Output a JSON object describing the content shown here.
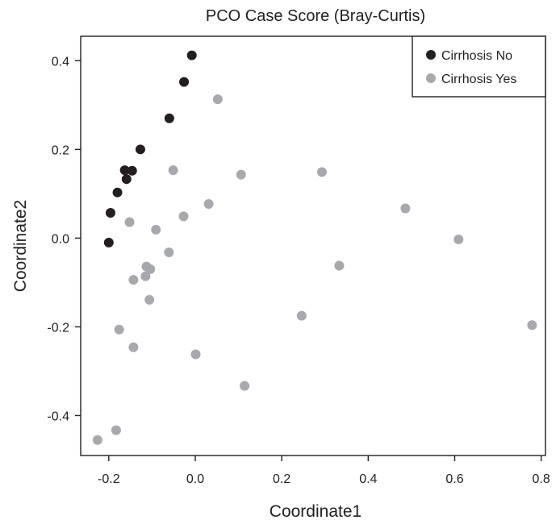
{
  "chart_data": {
    "type": "scatter",
    "title": "PCO Case Score (Bray-Curtis)",
    "xlabel": "Coordinate1",
    "ylabel": "Coordinate2",
    "xlim": [
      -0.265,
      0.81
    ],
    "ylim": [
      -0.49,
      0.455
    ],
    "xticks": [
      -0.2,
      0.0,
      0.2,
      0.4,
      0.6,
      0.8
    ],
    "xtick_labels": [
      "-0.2",
      "0.0",
      "0.2",
      "0.4",
      "0.6",
      "0.8"
    ],
    "yticks": [
      -0.4,
      -0.2,
      0.0,
      0.2,
      0.4
    ],
    "ytick_labels": [
      "-0.4",
      "-0.2",
      "0.0",
      "0.2",
      "0.4"
    ],
    "grid": false,
    "legend_position": "top-right",
    "series": [
      {
        "name": "Cirrhosis No",
        "color": "#231f20",
        "points": [
          [
            -0.008,
            0.412
          ],
          [
            -0.026,
            0.352
          ],
          [
            -0.06,
            0.27
          ],
          [
            -0.127,
            0.2
          ],
          [
            -0.163,
            0.153
          ],
          [
            -0.146,
            0.152
          ],
          [
            -0.159,
            0.133
          ],
          [
            -0.18,
            0.103
          ],
          [
            -0.196,
            0.057
          ],
          [
            -0.2,
            -0.01
          ]
        ]
      },
      {
        "name": "Cirrhosis Yes",
        "color": "#a7a9ac",
        "points": [
          [
            0.052,
            0.313
          ],
          [
            -0.051,
            0.153
          ],
          [
            0.106,
            0.143
          ],
          [
            0.293,
            0.149
          ],
          [
            0.031,
            0.077
          ],
          [
            -0.027,
            0.049
          ],
          [
            -0.152,
            0.036
          ],
          [
            -0.091,
            0.019
          ],
          [
            0.486,
            0.067
          ],
          [
            0.609,
            -0.003
          ],
          [
            -0.061,
            -0.032
          ],
          [
            -0.113,
            -0.064
          ],
          [
            -0.104,
            -0.07
          ],
          [
            -0.115,
            -0.086
          ],
          [
            -0.143,
            -0.094
          ],
          [
            0.333,
            -0.062
          ],
          [
            -0.106,
            -0.139
          ],
          [
            0.246,
            -0.175
          ],
          [
            -0.176,
            -0.206
          ],
          [
            0.779,
            -0.196
          ],
          [
            -0.143,
            -0.246
          ],
          [
            0.001,
            -0.262
          ],
          [
            0.114,
            -0.333
          ],
          [
            -0.183,
            -0.433
          ],
          [
            -0.226,
            -0.455
          ]
        ]
      }
    ]
  }
}
